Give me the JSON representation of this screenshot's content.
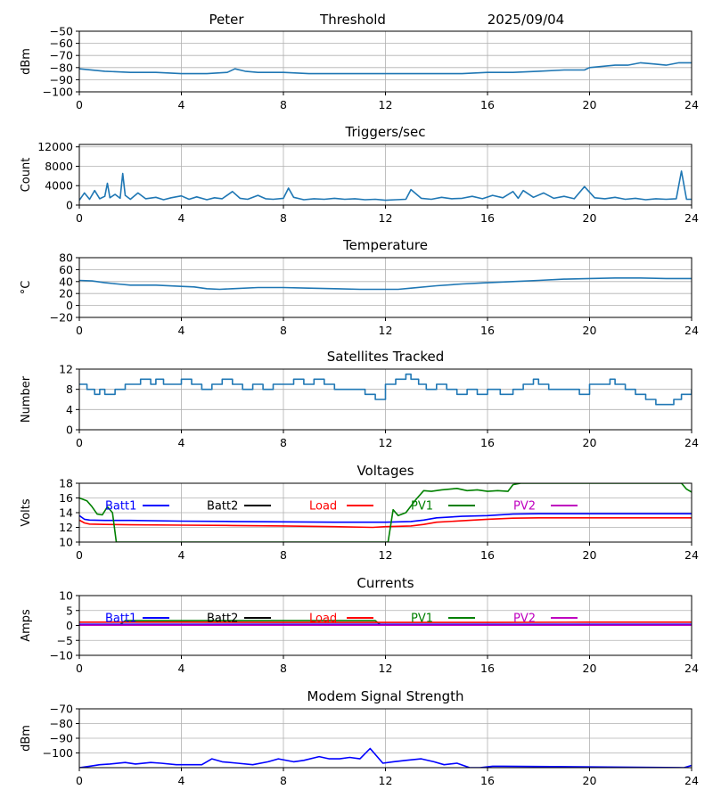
{
  "header": {
    "station": "Peter",
    "mode": "Threshold",
    "date": "2025/09/04"
  },
  "colors": {
    "default": "#1f77b4",
    "Batt1": "#0000ff",
    "Batt2": "#000000",
    "Load": "#ff0000",
    "PV1": "#008000",
    "PV2": "#bf00bf",
    "grid": "#b0b0b0"
  },
  "chart_data": [
    {
      "id": "threshold",
      "type": "line",
      "title": "",
      "ylabel": "dBm",
      "xlim": [
        0,
        24
      ],
      "ylim": [
        -100,
        -50
      ],
      "grid": true,
      "xticks": [
        0,
        4,
        8,
        12,
        16,
        20,
        24
      ],
      "yticks": [
        -100,
        -90,
        -80,
        -70,
        -60,
        -50
      ],
      "ytick_labels": [
        "−100",
        "−90",
        "−80",
        "−70",
        "−60",
        "−50"
      ],
      "series": [
        {
          "name": "",
          "color": "default",
          "x": [
            0,
            1,
            2,
            3,
            4,
            5,
            5.8,
            6.1,
            6.5,
            7,
            8,
            9,
            10,
            11,
            12,
            13,
            14,
            15,
            16,
            17,
            18,
            19,
            19.8,
            20,
            20.5,
            21,
            21.5,
            22,
            22.5,
            23,
            23.5,
            24
          ],
          "y": [
            -81,
            -83,
            -84,
            -84,
            -85,
            -85,
            -84,
            -81,
            -83,
            -84,
            -84,
            -85,
            -85,
            -85,
            -85,
            -85,
            -85,
            -85,
            -84,
            -84,
            -83,
            -82,
            -82,
            -80,
            -79,
            -78,
            -78,
            -76,
            -77,
            -78,
            -76,
            -76
          ]
        }
      ]
    },
    {
      "id": "triggers",
      "type": "line",
      "title": "Triggers/sec",
      "ylabel": "Count",
      "xlim": [
        0,
        24
      ],
      "ylim": [
        0,
        12500
      ],
      "grid": true,
      "xticks": [
        0,
        4,
        8,
        12,
        16,
        20,
        24
      ],
      "yticks": [
        0,
        4000,
        8000,
        12000
      ],
      "ytick_labels": [
        "0",
        "4000",
        "8000",
        "12000"
      ],
      "series": [
        {
          "name": "",
          "color": "default",
          "x": [
            0,
            0.2,
            0.4,
            0.6,
            0.8,
            1.0,
            1.1,
            1.2,
            1.4,
            1.6,
            1.7,
            1.8,
            2.0,
            2.3,
            2.6,
            3.0,
            3.3,
            3.6,
            4.0,
            4.3,
            4.6,
            5.0,
            5.3,
            5.6,
            6.0,
            6.3,
            6.6,
            7.0,
            7.3,
            7.6,
            8.0,
            8.2,
            8.4,
            8.8,
            9.2,
            9.6,
            10.0,
            10.4,
            10.8,
            11.2,
            11.6,
            12.0,
            12.4,
            12.8,
            13.0,
            13.4,
            13.8,
            14.2,
            14.6,
            15.0,
            15.4,
            15.8,
            16.2,
            16.6,
            17.0,
            17.2,
            17.4,
            17.8,
            18.2,
            18.6,
            19.0,
            19.4,
            19.8,
            20.2,
            20.6,
            21.0,
            21.4,
            21.8,
            22.2,
            22.6,
            23.0,
            23.4,
            23.6,
            23.8,
            24.0
          ],
          "y": [
            1000,
            2500,
            1200,
            3000,
            1300,
            1800,
            4500,
            1500,
            2200,
            1400,
            6500,
            2000,
            1200,
            2500,
            1300,
            1600,
            1100,
            1500,
            1900,
            1200,
            1700,
            1100,
            1500,
            1300,
            2800,
            1400,
            1200,
            2000,
            1300,
            1200,
            1400,
            3500,
            1600,
            1100,
            1300,
            1200,
            1400,
            1200,
            1300,
            1100,
            1200,
            1000,
            1100,
            1200,
            3200,
            1400,
            1200,
            1600,
            1300,
            1400,
            1800,
            1300,
            2000,
            1500,
            2800,
            1400,
            3000,
            1600,
            2500,
            1400,
            1800,
            1300,
            3800,
            1500,
            1300,
            1600,
            1200,
            1400,
            1100,
            1300,
            1200,
            1300,
            7000,
            1200,
            1200
          ]
        }
      ]
    },
    {
      "id": "temperature",
      "type": "line",
      "title": "Temperature",
      "ylabel": "°C",
      "xlim": [
        0,
        24
      ],
      "ylim": [
        -20,
        80
      ],
      "grid": true,
      "xticks": [
        0,
        4,
        8,
        12,
        16,
        20,
        24
      ],
      "yticks": [
        -20,
        0,
        20,
        40,
        60,
        80
      ],
      "ytick_labels": [
        "−20",
        "0",
        "20",
        "40",
        "60",
        "80"
      ],
      "series": [
        {
          "name": "",
          "color": "default",
          "x": [
            0,
            0.5,
            1,
            1.5,
            2,
            3,
            4,
            4.5,
            5,
            5.5,
            6,
            7,
            8,
            9,
            10,
            11,
            12,
            12.5,
            13,
            14,
            15,
            16,
            17,
            18,
            19,
            20,
            21,
            22,
            23,
            24
          ],
          "y": [
            42,
            41,
            38,
            36,
            34,
            34,
            32,
            31,
            28,
            27,
            28,
            30,
            30,
            29,
            28,
            27,
            27,
            27,
            29,
            33,
            36,
            38,
            40,
            42,
            44,
            45,
            46,
            46,
            45,
            45
          ]
        }
      ]
    },
    {
      "id": "satellites",
      "type": "line",
      "title": "Satellites Tracked",
      "ylabel": "Number",
      "xlim": [
        0,
        24
      ],
      "ylim": [
        0,
        12
      ],
      "grid": true,
      "xticks": [
        0,
        4,
        8,
        12,
        16,
        20,
        24
      ],
      "yticks": [
        0,
        4,
        8,
        12
      ],
      "ytick_labels": [
        "0",
        "4",
        "8",
        "12"
      ],
      "series": [
        {
          "name": "",
          "color": "default",
          "step": true,
          "x": [
            0,
            0.3,
            0.6,
            0.8,
            1.0,
            1.4,
            1.8,
            2.4,
            2.8,
            3.0,
            3.3,
            3.6,
            4.0,
            4.4,
            4.8,
            5.2,
            5.6,
            6.0,
            6.4,
            6.8,
            7.2,
            7.6,
            8.0,
            8.4,
            8.8,
            9.2,
            9.6,
            10.0,
            10.4,
            10.8,
            11.2,
            11.6,
            12.0,
            12.4,
            12.6,
            12.8,
            13.0,
            13.3,
            13.6,
            14.0,
            14.4,
            14.8,
            15.2,
            15.6,
            16.0,
            16.5,
            17.0,
            17.4,
            17.8,
            18.0,
            18.4,
            18.8,
            19.2,
            19.6,
            20.0,
            20.4,
            20.8,
            21.0,
            21.4,
            21.8,
            22.2,
            22.6,
            23.0,
            23.3,
            23.6,
            24.0
          ],
          "y": [
            9,
            8,
            7,
            8,
            7,
            8,
            9,
            10,
            9,
            10,
            9,
            9,
            10,
            9,
            8,
            9,
            10,
            9,
            8,
            9,
            8,
            9,
            9,
            10,
            9,
            10,
            9,
            8,
            8,
            8,
            7,
            6,
            9,
            10,
            10,
            11,
            10,
            9,
            8,
            9,
            8,
            7,
            8,
            7,
            8,
            7,
            8,
            9,
            10,
            9,
            8,
            8,
            8,
            7,
            9,
            9,
            10,
            9,
            8,
            7,
            6,
            5,
            5,
            6,
            7,
            8
          ]
        }
      ]
    },
    {
      "id": "voltages",
      "type": "line",
      "title": "Voltages",
      "ylabel": "Volts",
      "xlim": [
        0,
        24
      ],
      "ylim": [
        10,
        18
      ],
      "grid": true,
      "xticks": [
        0,
        4,
        8,
        12,
        16,
        20,
        24
      ],
      "yticks": [
        10,
        12,
        14,
        16,
        18
      ],
      "ytick_labels": [
        "10",
        "12",
        "14",
        "16",
        "18"
      ],
      "legend": "top",
      "series": [
        {
          "name": "Batt1",
          "color": "Batt1",
          "x": [
            0,
            0.2,
            0.4,
            1,
            2,
            4,
            6,
            8,
            10,
            12,
            13,
            13.5,
            14,
            15,
            16,
            17,
            18,
            20,
            22,
            24
          ],
          "y": [
            13.6,
            13.1,
            13.0,
            12.95,
            12.95,
            12.85,
            12.8,
            12.75,
            12.7,
            12.7,
            12.8,
            13.0,
            13.3,
            13.5,
            13.6,
            13.8,
            13.85,
            13.85,
            13.85,
            13.85
          ]
        },
        {
          "name": "Batt2",
          "color": "Batt2",
          "x": [],
          "y": []
        },
        {
          "name": "Load",
          "color": "Load",
          "x": [
            0,
            0.2,
            0.4,
            1,
            2,
            4,
            6,
            8,
            10,
            11.5,
            12,
            13,
            13.5,
            14,
            15,
            16,
            17,
            18,
            20,
            22,
            24
          ],
          "y": [
            13.0,
            12.6,
            12.45,
            12.4,
            12.35,
            12.3,
            12.25,
            12.2,
            12.1,
            12.0,
            12.1,
            12.2,
            12.4,
            12.7,
            12.9,
            13.1,
            13.25,
            13.3,
            13.3,
            13.3,
            13.3
          ]
        },
        {
          "name": "PV1",
          "color": "PV1",
          "x": [
            0,
            0.3,
            0.5,
            0.7,
            0.9,
            1.1,
            1.3,
            1.45,
            12.1,
            12.3,
            12.5,
            12.8,
            13.2,
            13.5,
            13.8,
            14.2,
            14.8,
            15.2,
            15.6,
            16.0,
            16.4,
            16.8,
            17.0,
            17.3,
            23.6,
            23.8,
            24.0
          ],
          "y": [
            16.0,
            15.6,
            14.8,
            13.8,
            13.7,
            14.8,
            14.0,
            10.0,
            10.0,
            14.4,
            13.6,
            14.0,
            15.8,
            17.0,
            16.9,
            17.1,
            17.3,
            17.0,
            17.1,
            16.9,
            17.0,
            16.9,
            17.8,
            18.0,
            18.0,
            17.2,
            16.8
          ]
        },
        {
          "name": "PV2",
          "color": "PV2",
          "x": [],
          "y": []
        }
      ]
    },
    {
      "id": "currents",
      "type": "line",
      "title": "Currents",
      "ylabel": "Amps",
      "xlim": [
        0,
        24
      ],
      "ylim": [
        -10,
        10
      ],
      "grid": true,
      "xticks": [
        0,
        4,
        8,
        12,
        16,
        20,
        24
      ],
      "yticks": [
        -10,
        -5,
        0,
        5,
        10
      ],
      "ytick_labels": [
        "−10",
        "−5",
        "0",
        "5",
        "10"
      ],
      "legend": "top",
      "series": [
        {
          "name": "PV1",
          "color": "PV1",
          "x": [
            0,
            1.6,
            1.8,
            11.6,
            11.8,
            24
          ],
          "y": [
            0.3,
            0.3,
            1.6,
            1.6,
            0.3,
            0.3
          ]
        },
        {
          "name": "Load",
          "color": "Load",
          "x": [
            0,
            4,
            8,
            12,
            16,
            20,
            24
          ],
          "y": [
            1.1,
            1.1,
            1.0,
            1.0,
            1.0,
            1.1,
            1.1
          ]
        },
        {
          "name": "Batt1",
          "color": "Batt1",
          "x": [
            0,
            24
          ],
          "y": [
            0.4,
            0.4
          ]
        },
        {
          "name": "Batt2",
          "color": "Batt2",
          "x": [],
          "y": []
        },
        {
          "name": "PV2",
          "color": "PV2",
          "x": [
            0,
            24
          ],
          "y": [
            0.1,
            0.1
          ]
        }
      ]
    },
    {
      "id": "modem",
      "type": "line",
      "title": "Modem Signal Strength",
      "ylabel": "dBm",
      "xlim": [
        0,
        24
      ],
      "ylim": [
        -110,
        -70
      ],
      "grid": true,
      "xticks": [
        0,
        4,
        8,
        12,
        16,
        20,
        24
      ],
      "yticks": [
        -100,
        -90,
        -80,
        -70
      ],
      "ytick_labels": [
        "−100",
        "−90",
        "−80",
        "−70"
      ],
      "series": [
        {
          "name": "",
          "color": "Batt1",
          "x": [
            0,
            0.4,
            0.8,
            1.2,
            1.8,
            2.2,
            2.8,
            3.2,
            3.8,
            4.4,
            4.8,
            5.2,
            5.6,
            6.2,
            6.8,
            7.4,
            7.8,
            8.4,
            8.8,
            9.4,
            9.8,
            10.2,
            10.6,
            11.0,
            11.4,
            11.9,
            12.3,
            12.8,
            13.4,
            13.9,
            14.3,
            14.8,
            15.3,
            15.7,
            16.2,
            16.6,
            23.7,
            24.0
          ],
          "y": [
            -110,
            -109,
            -108,
            -107.5,
            -106.5,
            -107.5,
            -106.5,
            -107,
            -108,
            -108,
            -108,
            -104,
            -106,
            -107,
            -108,
            -106,
            -104,
            -106,
            -105,
            -102.5,
            -104,
            -104,
            -103,
            -104,
            -97,
            -107,
            -106,
            -105,
            -104,
            -106,
            -108,
            -107,
            -110,
            -110,
            -109,
            -109,
            -110,
            -108.5
          ]
        }
      ]
    }
  ]
}
